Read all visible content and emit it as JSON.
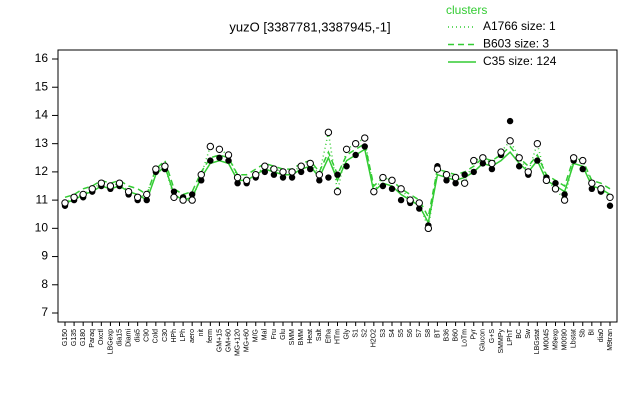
{
  "chart_data": {
    "type": "line",
    "title": "yuzO [3387781,3387945,-1]",
    "legend_title": "clusters",
    "categories": [
      "G150",
      "G135",
      "G180",
      "Paraq",
      "Oxctl",
      "LBGexp",
      "dia15",
      "Diami",
      "dia5",
      "C90",
      "Cold",
      "C30",
      "HPh",
      "LPh",
      "aero",
      "nit",
      "ferm",
      "GM+15",
      "GM+60",
      "MG+120",
      "MG+60",
      "M/G",
      "Mal",
      "Fru",
      "Glu",
      "SMM",
      "BMM",
      "Heat",
      "Salt",
      "Etha",
      "HTm",
      "Gly",
      "S1",
      "S2",
      "H2O2",
      "S3",
      "S4",
      "S5",
      "S6",
      "S7",
      "S8",
      "BT",
      "B36",
      "B60",
      "LoTm",
      "Pyr",
      "Glucon",
      "G+S",
      "SMMPy",
      "LPhT",
      "BC",
      "Sw",
      "LBGstat",
      "M0045",
      "M9exp",
      "M0090",
      "Lbstat",
      "Sb",
      "BI",
      "dia0",
      "M9tran"
    ],
    "series": [
      {
        "name": "A1766 size: 1",
        "color": "#33cc33",
        "dash": "dotted",
        "values": [
          10.9,
          11.1,
          11.2,
          11.4,
          11.6,
          11.5,
          11.6,
          11.3,
          11.1,
          11.2,
          12.1,
          12.2,
          11.1,
          11.0,
          11.0,
          11.9,
          12.9,
          12.8,
          12.6,
          11.8,
          11.7,
          11.9,
          12.2,
          12.1,
          12.0,
          12.0,
          12.2,
          12.3,
          11.9,
          13.4,
          11.3,
          12.8,
          13.0,
          13.2,
          11.3,
          11.8,
          11.7,
          11.4,
          11.0,
          10.9,
          10.0,
          12.1,
          11.9,
          11.8,
          11.6,
          12.4,
          12.5,
          12.3,
          12.7,
          13.1,
          12.5,
          12.0,
          13.0,
          11.7,
          11.4,
          11.0,
          12.5,
          12.4,
          11.6,
          11.4,
          11.1
        ]
      },
      {
        "name": "B603 size: 3",
        "color": "#33cc33",
        "dash": "dashed",
        "values": [
          11.1,
          11.2,
          11.4,
          11.5,
          11.7,
          11.6,
          11.7,
          11.5,
          11.4,
          11.2,
          12.1,
          12.4,
          11.4,
          11.2,
          11.3,
          12.0,
          12.5,
          12.6,
          12.5,
          11.9,
          11.9,
          12.1,
          12.3,
          12.2,
          12.1,
          12.1,
          12.3,
          12.4,
          12.0,
          12.7,
          11.9,
          12.6,
          12.8,
          13.0,
          11.5,
          11.8,
          11.7,
          11.4,
          11.2,
          11.0,
          10.4,
          12.1,
          12.0,
          11.9,
          12.0,
          12.2,
          12.5,
          12.4,
          12.6,
          12.9,
          12.5,
          12.2,
          12.6,
          11.9,
          11.7,
          11.5,
          12.5,
          12.4,
          11.7,
          11.6,
          11.4
        ]
      },
      {
        "name": "C35 size: 124",
        "color": "#33cc33",
        "dash": "solid",
        "values": [
          10.9,
          11.0,
          11.2,
          11.3,
          11.5,
          11.4,
          11.5,
          11.3,
          11.2,
          11.0,
          11.9,
          12.2,
          11.2,
          11.0,
          11.1,
          11.8,
          12.3,
          12.4,
          12.3,
          11.7,
          11.7,
          11.9,
          12.1,
          12.0,
          11.9,
          11.9,
          12.1,
          12.2,
          11.8,
          12.5,
          11.7,
          12.4,
          12.6,
          12.8,
          11.3,
          11.6,
          11.5,
          11.2,
          11.0,
          10.8,
          10.2,
          11.9,
          11.8,
          11.7,
          11.8,
          12.0,
          12.3,
          12.2,
          12.4,
          12.7,
          12.3,
          12.0,
          12.4,
          11.7,
          11.5,
          11.3,
          12.3,
          12.2,
          11.5,
          11.4,
          11.2
        ]
      }
    ],
    "open_points": [
      10.9,
      11.1,
      11.2,
      11.4,
      11.6,
      11.5,
      11.6,
      11.3,
      11.1,
      11.2,
      12.1,
      12.2,
      11.1,
      11.0,
      11.0,
      11.9,
      12.9,
      12.8,
      12.6,
      11.8,
      11.7,
      11.9,
      12.2,
      12.1,
      12.0,
      12.0,
      12.2,
      12.3,
      11.9,
      13.4,
      11.3,
      12.8,
      13.0,
      13.2,
      11.3,
      11.8,
      11.7,
      11.4,
      11.0,
      10.9,
      10.0,
      12.1,
      11.9,
      11.8,
      11.6,
      12.4,
      12.5,
      12.3,
      12.7,
      13.1,
      12.5,
      12.0,
      13.0,
      11.7,
      11.4,
      11.0,
      12.5,
      12.4,
      11.6,
      11.4,
      11.1
    ],
    "filled_points": [
      10.8,
      11.0,
      11.1,
      11.3,
      11.5,
      11.4,
      11.5,
      11.2,
      11.0,
      11.0,
      12.0,
      12.1,
      11.3,
      11.1,
      11.2,
      11.7,
      12.4,
      12.5,
      12.4,
      11.6,
      11.6,
      11.8,
      12.0,
      11.9,
      11.8,
      11.8,
      12.0,
      12.1,
      11.7,
      11.8,
      11.9,
      12.2,
      12.6,
      12.9,
      11.3,
      11.5,
      11.4,
      11.0,
      10.9,
      10.7,
      10.1,
      12.2,
      11.7,
      11.6,
      11.9,
      12.0,
      12.3,
      12.1,
      12.6,
      13.8,
      12.2,
      11.9,
      12.4,
      11.8,
      11.6,
      11.2,
      12.4,
      12.1,
      11.4,
      11.3,
      10.8
    ],
    "ylim": [
      7,
      16
    ],
    "yticks": [
      7,
      8,
      9,
      10,
      11,
      12,
      13,
      14,
      15,
      16
    ]
  }
}
